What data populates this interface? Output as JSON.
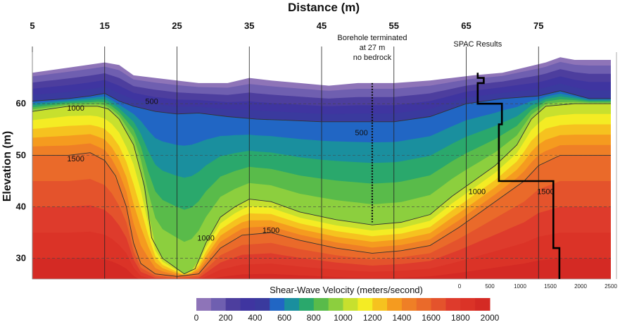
{
  "chart_data": {
    "type": "heatmap",
    "title": "Distance (m)",
    "xlabel": "Distance (m)",
    "ylabel": "Elevation (m)",
    "xlim": [
      5,
      85
    ],
    "ylim": [
      26,
      70
    ],
    "x_ticks": [
      5,
      15,
      25,
      35,
      45,
      55,
      65,
      75
    ],
    "y_ticks": [
      30,
      40,
      50,
      60
    ],
    "colorbar": {
      "label": "Shear-Wave Velocity (meters/second)",
      "ticks": [
        0,
        200,
        400,
        600,
        800,
        1000,
        1200,
        1400,
        1600,
        1800,
        2000
      ],
      "colors": [
        "#8e74b8",
        "#6f5fb0",
        "#4d3e9e",
        "#3f35a0",
        "#3a3a9e",
        "#2166c4",
        "#1a8f9e",
        "#2aa86c",
        "#59bb4a",
        "#8ccf3e",
        "#c7e02e",
        "#f4ec24",
        "#f6c21f",
        "#f59b1f",
        "#ef7f26",
        "#ea6a2a",
        "#e4532c",
        "#de3b2c",
        "#db3327",
        "#d42a24"
      ]
    },
    "contours": [
      {
        "label": "500",
        "color_index": 5,
        "surface": [
          [
            5,
            60.5
          ],
          [
            10,
            61
          ],
          [
            13,
            61.5
          ],
          [
            15,
            62
          ],
          [
            17,
            60.5
          ],
          [
            19,
            59.5
          ],
          [
            22,
            58.5
          ],
          [
            25,
            58
          ],
          [
            28,
            58.2
          ],
          [
            32,
            57.5
          ],
          [
            36,
            57
          ],
          [
            40,
            56.8
          ],
          [
            45,
            56.5
          ],
          [
            50,
            56.5
          ],
          [
            55,
            56.5
          ],
          [
            60,
            57.5
          ],
          [
            62,
            58.5
          ],
          [
            65,
            60
          ],
          [
            70,
            61
          ],
          [
            75,
            61.5
          ],
          [
            78,
            62.5
          ],
          [
            82,
            61
          ],
          [
            85,
            61
          ]
        ]
      },
      {
        "label": "1000",
        "color_index": 9,
        "surface": [
          [
            5,
            58.5
          ],
          [
            10,
            59.5
          ],
          [
            14,
            59.5
          ],
          [
            15.5,
            59
          ],
          [
            17,
            57
          ],
          [
            19,
            52
          ],
          [
            20.5,
            44
          ],
          [
            21.5,
            34
          ],
          [
            23,
            30
          ],
          [
            26,
            27
          ],
          [
            27.5,
            28
          ],
          [
            29,
            33
          ],
          [
            31,
            38
          ],
          [
            33,
            40
          ],
          [
            35,
            41.5
          ],
          [
            38,
            41
          ],
          [
            42,
            39
          ],
          [
            47,
            37.5
          ],
          [
            52,
            36.5
          ],
          [
            56,
            37
          ],
          [
            60,
            38.5
          ],
          [
            63,
            42
          ],
          [
            66,
            45
          ],
          [
            69,
            48
          ],
          [
            72,
            52
          ],
          [
            74,
            57
          ],
          [
            76,
            59.5
          ],
          [
            80,
            60
          ],
          [
            85,
            60
          ]
        ]
      },
      {
        "label": "1500",
        "color_index": 13,
        "surface": [
          [
            5,
            50
          ],
          [
            10,
            50
          ],
          [
            13,
            50.5
          ],
          [
            15,
            49
          ],
          [
            16.5,
            46
          ],
          [
            18,
            40
          ],
          [
            19,
            33
          ],
          [
            20,
            29
          ],
          [
            22,
            27
          ],
          [
            25,
            26.5
          ],
          [
            28,
            27
          ],
          [
            31,
            32
          ],
          [
            34,
            34.5
          ],
          [
            38,
            35
          ],
          [
            42,
            33.5
          ],
          [
            47,
            32
          ],
          [
            52,
            31
          ],
          [
            56,
            31.5
          ],
          [
            60,
            32.5
          ],
          [
            64,
            36
          ],
          [
            67,
            39
          ],
          [
            70,
            42
          ],
          [
            73,
            45
          ],
          [
            75,
            48
          ],
          [
            78,
            50
          ],
          [
            82,
            50
          ],
          [
            85,
            50
          ]
        ]
      }
    ],
    "terrain": [
      [
        5,
        66
      ],
      [
        10,
        67
      ],
      [
        15,
        68
      ],
      [
        17,
        67.5
      ],
      [
        19,
        65.5
      ],
      [
        22,
        65
      ],
      [
        25,
        64.5
      ],
      [
        28,
        64
      ],
      [
        32,
        64
      ],
      [
        35,
        65
      ],
      [
        38,
        64.5
      ],
      [
        42,
        64
      ],
      [
        46,
        63.5
      ],
      [
        50,
        64
      ],
      [
        55,
        64
      ],
      [
        60,
        64.5
      ],
      [
        63,
        65
      ],
      [
        66,
        65.5
      ],
      [
        70,
        66
      ],
      [
        73,
        67
      ],
      [
        76,
        68
      ],
      [
        78,
        69
      ],
      [
        80,
        68.5
      ],
      [
        83,
        68.5
      ],
      [
        85,
        68.5
      ]
    ],
    "borehole": {
      "label": "Borehole terminated at 27 m no bedrock",
      "x": 52,
      "y_top": 64,
      "y_bottom": 37
    },
    "spac": {
      "label": "SPAC Results",
      "axis_ticks": [
        0,
        500,
        1000,
        1500,
        2000,
        2500
      ],
      "profile": [
        [
          300,
          66
        ],
        [
          300,
          65
        ],
        [
          400,
          65
        ],
        [
          400,
          64
        ],
        [
          300,
          64
        ],
        [
          300,
          60
        ],
        [
          700,
          60
        ],
        [
          700,
          56
        ],
        [
          650,
          56
        ],
        [
          650,
          45
        ],
        [
          1550,
          45
        ],
        [
          1550,
          32
        ],
        [
          1650,
          32
        ],
        [
          1650,
          26
        ]
      ]
    },
    "annotations": [
      {
        "text": "1000",
        "x": 11,
        "y": 59.2
      },
      {
        "text": "1500",
        "x": 11,
        "y": 49.4
      },
      {
        "text": "500",
        "x": 21.5,
        "y": 60.5
      },
      {
        "text": "1000",
        "x": 29,
        "y": 34
      },
      {
        "text": "1500",
        "x": 38,
        "y": 35.5
      },
      {
        "text": "500",
        "x": 50.5,
        "y": 54.4
      },
      {
        "text": "1000",
        "x": 66.5,
        "y": 43
      },
      {
        "text": "1500",
        "x": 76,
        "y": 43
      }
    ]
  }
}
